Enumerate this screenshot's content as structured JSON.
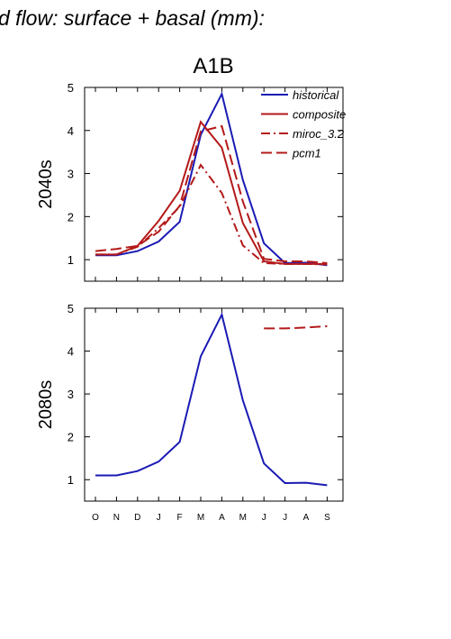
{
  "page_title": "d flow: surface + basal (mm):",
  "scenario": "A1B",
  "colors": {
    "historical": "#1a1ab4",
    "projection": "#b41a1a",
    "axis": "#000000"
  },
  "chart_data": [
    {
      "type": "line",
      "row_label": "2040s",
      "categories": [
        "O",
        "N",
        "D",
        "J",
        "F",
        "M",
        "A",
        "M",
        "J",
        "J",
        "A",
        "S"
      ],
      "y_ticks": [
        1,
        2,
        3,
        4,
        5
      ],
      "ylim": [
        0.5,
        5
      ],
      "legend": {
        "position": "top-right",
        "entries": [
          "historical",
          "composite",
          "miroc_3.2",
          "pcm1"
        ]
      },
      "series": [
        {
          "name": "historical",
          "style": "solid",
          "color": "#1a1ab4",
          "values": [
            1.1,
            1.1,
            1.2,
            1.42,
            1.88,
            3.9,
            4.85,
            2.85,
            1.38,
            0.92,
            0.93,
            0.87
          ]
        },
        {
          "name": "composite",
          "style": "solid",
          "color": "#b41a1a",
          "values": [
            1.12,
            1.12,
            1.32,
            1.9,
            2.6,
            4.2,
            3.6,
            1.85,
            0.96,
            0.9,
            0.9,
            0.9
          ]
        },
        {
          "name": "miroc_3.2",
          "style": "dashdot",
          "color": "#b41a1a",
          "values": [
            1.12,
            1.12,
            1.3,
            1.73,
            2.23,
            3.2,
            2.55,
            1.33,
            0.92,
            0.9,
            0.9,
            0.89
          ]
        },
        {
          "name": "pcm1",
          "style": "dash",
          "color": "#b41a1a",
          "values": [
            1.2,
            1.25,
            1.32,
            1.65,
            2.25,
            3.98,
            4.1,
            2.35,
            1.02,
            0.96,
            0.96,
            0.92
          ]
        }
      ]
    },
    {
      "type": "line",
      "row_label": "2080s",
      "categories": [
        "O",
        "N",
        "D",
        "J",
        "F",
        "M",
        "A",
        "M",
        "J",
        "J",
        "A",
        "S"
      ],
      "y_ticks": [
        1,
        2,
        3,
        4,
        5
      ],
      "ylim": [
        0.5,
        5
      ],
      "series": [
        {
          "name": "historical",
          "style": "solid",
          "color": "#1a1ab4",
          "values": [
            1.1,
            1.1,
            1.2,
            1.42,
            1.88,
            3.88,
            4.85,
            2.85,
            1.38,
            0.92,
            0.93,
            0.87
          ]
        },
        {
          "name": "pcm1",
          "style": "dash",
          "color": "#b41a1a",
          "values": [
            null,
            null,
            null,
            null,
            null,
            null,
            null,
            null,
            4.53,
            4.53,
            4.55,
            4.58
          ]
        }
      ]
    }
  ]
}
